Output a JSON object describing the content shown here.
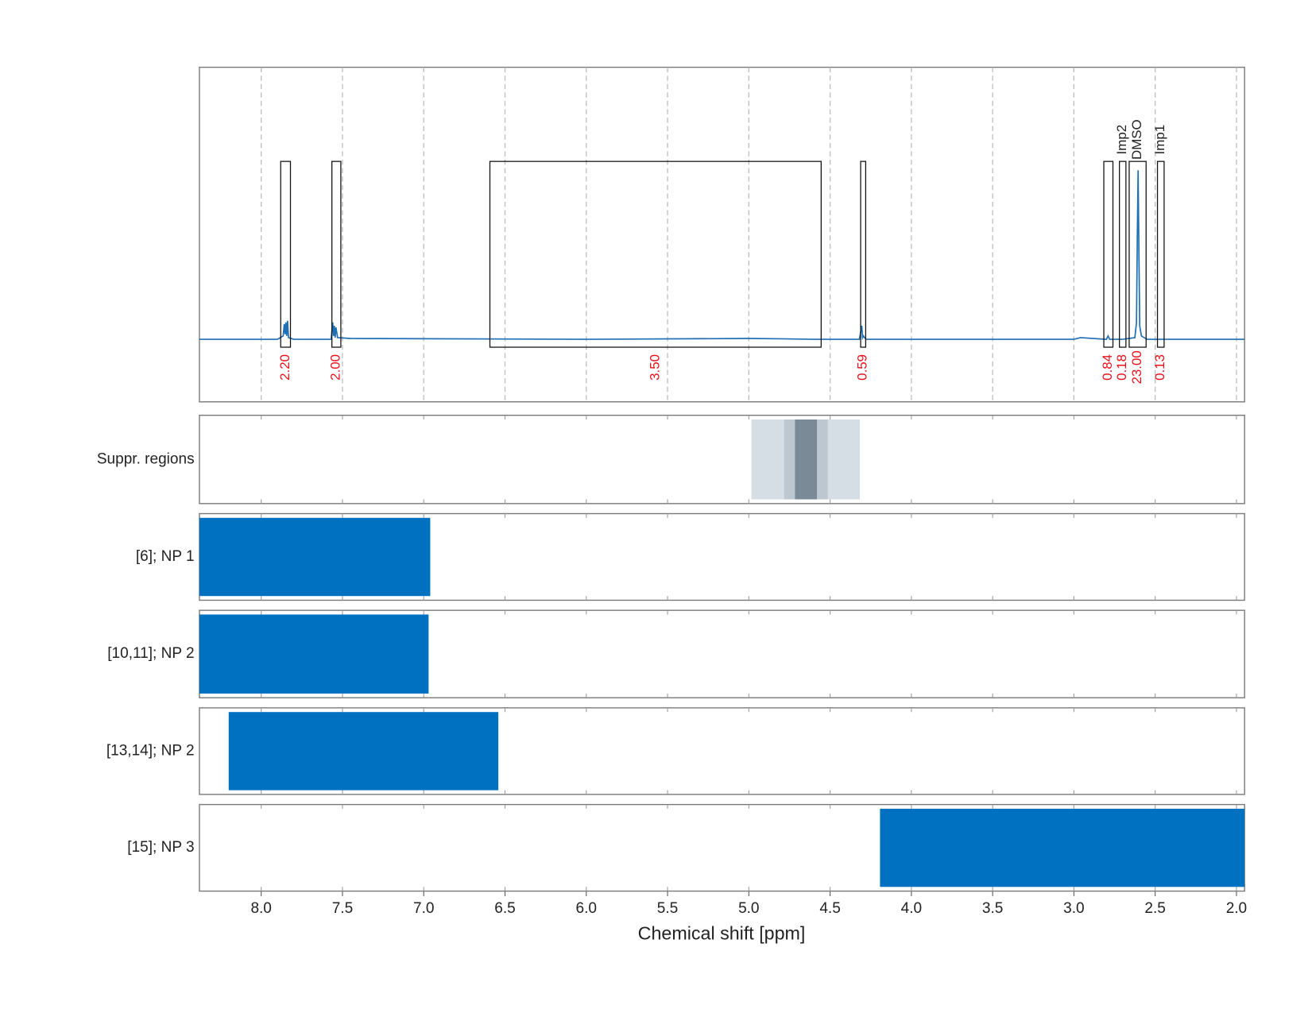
{
  "chart_data": {
    "type": "nmr",
    "xlabel": "Chemical shift [ppm]",
    "xlim": [
      8.38,
      1.95
    ],
    "xticks": [
      {
        "value": 8,
        "label": "8.0"
      },
      7.5,
      {
        "value": 7,
        "label": "7.0"
      },
      6.5,
      {
        "value": 6,
        "label": "6.0"
      },
      5.5,
      {
        "value": 5,
        "label": "5.0"
      },
      4.5,
      {
        "value": 4,
        "label": "4.0"
      },
      3.5,
      {
        "value": 3,
        "label": "3.0"
      },
      2.5,
      {
        "value": 2,
        "label": "2.0"
      }
    ],
    "grid": true,
    "spectrum": {
      "color": "#1f6fb4",
      "ylim": [
        -0.37,
        1.61
      ],
      "x": [
        8.38,
        7.9,
        7.865,
        7.858,
        7.853,
        7.848,
        7.843,
        7.838,
        7.832,
        7.8,
        7.57,
        7.56,
        7.555,
        7.55,
        7.545,
        7.54,
        7.53,
        7.45,
        6.0,
        5.0,
        4.8,
        4.6,
        4.32,
        4.305,
        4.3,
        4.295,
        4.28,
        3.0,
        2.96,
        2.8,
        2.79,
        2.78,
        2.7,
        2.625,
        2.615,
        2.61,
        2.605,
        2.6,
        2.595,
        2.585,
        2.55,
        2.5,
        1.95
      ],
      "values": [
        0,
        0,
        0.02,
        0.09,
        0.03,
        0.1,
        0.02,
        0.11,
        0.01,
        0,
        0,
        0.1,
        0.02,
        0.08,
        0.01,
        0.07,
        0.01,
        0.005,
        0,
        0.005,
        0.003,
        0,
        0,
        0.08,
        0.01,
        0.02,
        0,
        0,
        0.01,
        0,
        0.02,
        0,
        0,
        0.01,
        0.1,
        0.6,
        1.0,
        0.5,
        0.08,
        0.02,
        0,
        0,
        0
      ]
    },
    "regions": [
      {
        "start": 7.88,
        "end": 7.82,
        "integral": "2.20"
      },
      {
        "start": 7.565,
        "end": 7.51,
        "integral": "2.00"
      },
      {
        "start": 6.593,
        "end": 4.555,
        "integral": "3.50"
      },
      {
        "start": 4.312,
        "end": 4.281,
        "integral": "0.59"
      },
      {
        "start": 2.816,
        "end": 2.76,
        "integral": "0.84"
      },
      {
        "start": 2.72,
        "end": 2.68,
        "integral": "0.18",
        "name": "Imp2"
      },
      {
        "start": 2.66,
        "end": 2.556,
        "integral": "23.00",
        "name": "DMSO"
      },
      {
        "start": 2.486,
        "end": 2.445,
        "integral": "0.13",
        "name": "Imp1"
      }
    ],
    "suppression": {
      "label": "Suppr. regions",
      "bands": [
        {
          "start": 4.984,
          "end": 4.317,
          "color": "#d6dee5"
        },
        {
          "start": 4.783,
          "end": 4.514,
          "color": "#bcc7cf"
        },
        {
          "start": 4.716,
          "end": 4.581,
          "color": "#7a8b97"
        }
      ]
    },
    "bars": {
      "color": "#0070c0",
      "rows": [
        {
          "label": "[6]; NP 1",
          "start": 8.38,
          "end": 6.96
        },
        {
          "label": "[10,11]; NP 2",
          "start": 8.38,
          "end": 6.97
        },
        {
          "label": "[13,14]; NP 2",
          "start": 8.2,
          "end": 6.541
        },
        {
          "label": "[15]; NP 3",
          "start": 4.193,
          "end": 1.95
        }
      ]
    }
  }
}
